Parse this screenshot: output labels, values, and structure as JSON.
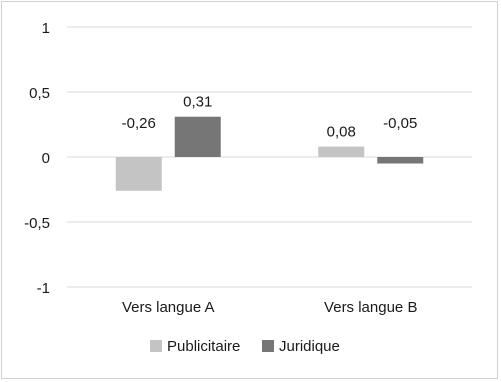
{
  "chart_data": {
    "type": "bar",
    "categories": [
      "Vers langue A",
      "Vers langue B"
    ],
    "series": [
      {
        "name": "Publicitaire",
        "values": [
          -0.26,
          0.08
        ],
        "labels": [
          "-0,26",
          "0,08"
        ],
        "color": "#c4c4c4"
      },
      {
        "name": "Juridique",
        "values": [
          0.31,
          -0.05
        ],
        "labels": [
          "0,31",
          "-0,05"
        ],
        "color": "#767676"
      }
    ],
    "ylim": [
      -1,
      1
    ],
    "yticks": [
      1,
      0.5,
      0,
      -0.5,
      -1
    ],
    "ytick_labels": [
      "1",
      "0,5",
      "0",
      "-0,5",
      "-1"
    ],
    "grid": true,
    "legend_position": "bottom"
  }
}
